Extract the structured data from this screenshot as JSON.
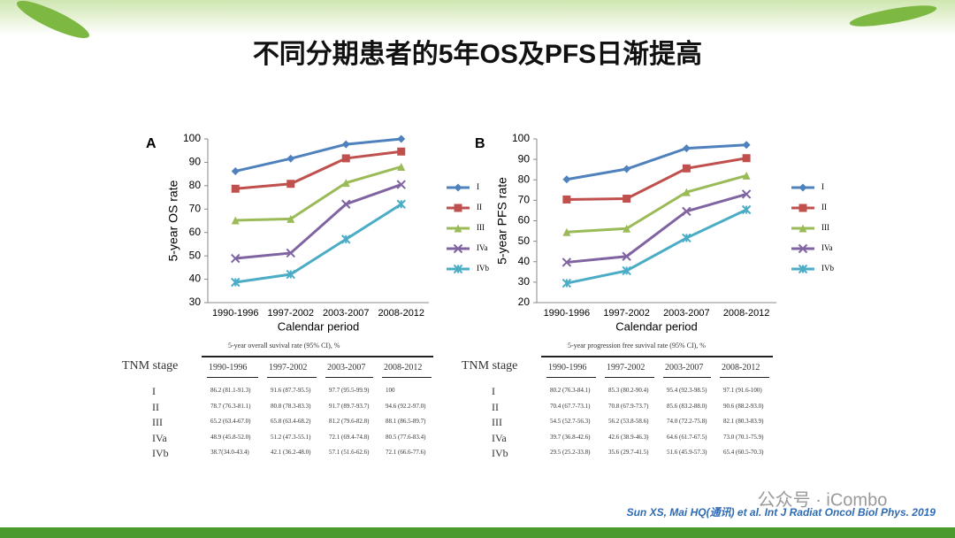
{
  "title": "不同分期患者的5年OS及PFS日渐提高",
  "chart_data": [
    {
      "type": "line",
      "panel": "A",
      "ylabel": "5-year OS rate",
      "xlabel": "Calendar period",
      "categories": [
        "1990-1996",
        "1997-2002",
        "2003-2007",
        "2008-2012"
      ],
      "ylim": [
        30,
        100
      ],
      "yticks": [
        30,
        40,
        50,
        60,
        70,
        80,
        90,
        100
      ],
      "series": [
        {
          "name": "I",
          "color": "#4f81bd",
          "values": [
            86.2,
            91.6,
            97.7,
            100
          ]
        },
        {
          "name": "II",
          "color": "#c0504d",
          "values": [
            78.7,
            80.8,
            91.7,
            94.6
          ]
        },
        {
          "name": "III",
          "color": "#9bbb59",
          "values": [
            65.2,
            65.8,
            81.2,
            88.1
          ]
        },
        {
          "name": "IVa",
          "color": "#8064a2",
          "values": [
            48.9,
            51.2,
            72.1,
            80.5
          ]
        },
        {
          "name": "IVb",
          "color": "#4bacc6",
          "values": [
            38.7,
            42.1,
            57.1,
            72.1
          ]
        }
      ]
    },
    {
      "type": "line",
      "panel": "B",
      "ylabel": "5-year PFS rate",
      "xlabel": "Calendar period",
      "categories": [
        "1990-1996",
        "1997-2002",
        "2003-2007",
        "2008-2012"
      ],
      "ylim": [
        20,
        100
      ],
      "yticks": [
        20,
        30,
        40,
        50,
        60,
        70,
        80,
        90,
        100
      ],
      "series": [
        {
          "name": "I",
          "color": "#4f81bd",
          "values": [
            80.2,
            85.3,
            95.4,
            97.1
          ]
        },
        {
          "name": "II",
          "color": "#c0504d",
          "values": [
            70.4,
            70.8,
            85.6,
            90.6
          ]
        },
        {
          "name": "III",
          "color": "#9bbb59",
          "values": [
            54.5,
            56.2,
            74.0,
            82.1
          ]
        },
        {
          "name": "IVa",
          "color": "#8064a2",
          "values": [
            39.7,
            42.6,
            64.6,
            73.0
          ]
        },
        {
          "name": "IVb",
          "color": "#4bacc6",
          "values": [
            29.5,
            35.6,
            51.6,
            65.4
          ]
        }
      ]
    }
  ],
  "tables": [
    {
      "caption": "5-year overall suvival rate (95% CI), %",
      "header": [
        "TNM stage",
        "1990-1996",
        "1997-2002",
        "2003-2007",
        "2008-2012"
      ],
      "rows": [
        [
          "I",
          "86.2 (81.1-91.3)",
          "91.6 (87.7-95.5)",
          "97.7 (95.5-99.9)",
          "100"
        ],
        [
          "II",
          "78.7 (76.3-81.1)",
          "80.8 (78.3-83.3)",
          "91.7 (89.7-93.7)",
          "94.6 (92.2-97.0)"
        ],
        [
          "III",
          "65.2 (63.4-67.0)",
          "65.8 (63.4-68.2)",
          "81.2 (79.6-82.8)",
          "88.1 (86.5-89.7)"
        ],
        [
          "IVa",
          "48.9 (45.8-52.0)",
          "51.2 (47.3-55.1)",
          "72.1 (69.4-74.8)",
          "80.5 (77.6-83.4)"
        ],
        [
          "IVb",
          "38.7(34.0-43.4)",
          "42.1 (36.2-48.0)",
          "57.1 (51.6-62.6)",
          "72.1 (66.6-77.6)"
        ]
      ]
    },
    {
      "caption": "5-year progression free suvival rate (95% CI), %",
      "header": [
        "TNM stage",
        "1990-1996",
        "1997-2002",
        "2003-2007",
        "2008-2012"
      ],
      "rows": [
        [
          "I",
          "80.2 (76.3-84.1)",
          "85.3 (80.2-90.4)",
          "95.4 (92.3-98.5)",
          "97.1 (91.6-100)"
        ],
        [
          "II",
          "70.4 (67.7-73.1)",
          "70.8 (67.9-73.7)",
          "85.6 (83.2-88.0)",
          "90.6 (88.2-93.0)"
        ],
        [
          "III",
          "54.5 (52.7-56.3)",
          "56.2 (53.8-58.6)",
          "74.0 (72.2-75.8)",
          "82.1 (80.3-83.9)"
        ],
        [
          "IVa",
          "39.7 (36.8-42.6)",
          "42.6 (38.9-46.3)",
          "64.6 (61.7-67.5)",
          "73.0 (70.1-75.9)"
        ],
        [
          "IVb",
          "29.5 (25.2-33.8)",
          "35.6 (29.7-41.5)",
          "51.6 (45.9-57.3)",
          "65.4 (60.5-70.3)"
        ]
      ]
    }
  ],
  "watermark": "公众号 · iCombo",
  "citation": "Sun XS, Mai HQ(通讯) et al. Int J Radiat Oncol Biol Phys. 2019"
}
